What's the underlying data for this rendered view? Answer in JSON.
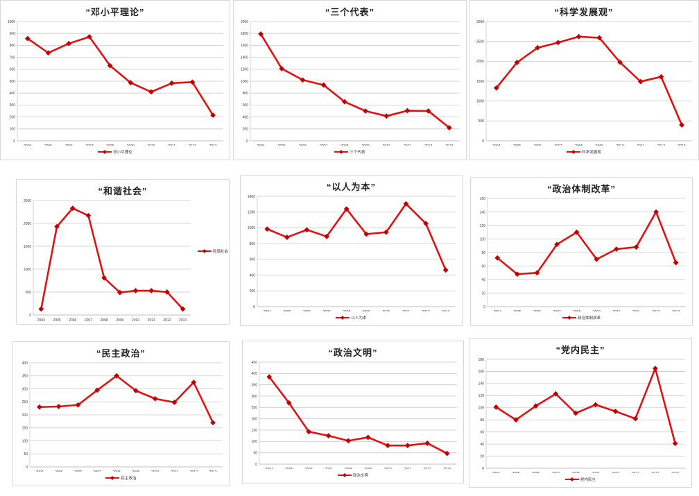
{
  "colors": {
    "line": "#e01111",
    "marker": "#c00000",
    "grid": "#c9c9c9",
    "axis_line": "#aeaeae",
    "tick_text": "#3c3c3c",
    "title_text": "#1f1f1f",
    "panel_border": "#d7d7d7"
  },
  "chart_data": [
    {
      "type": "line",
      "title": "“邓小平理论”",
      "legend": "邓小平理论",
      "legend_position": "bottom",
      "categories": [
        "2004",
        "2005",
        "2006",
        "2007",
        "2008",
        "2009",
        "2010",
        "2011",
        "2012",
        "2013"
      ],
      "values": [
        857,
        737,
        815,
        872,
        630,
        487,
        410,
        483,
        492,
        215
      ],
      "ylim": [
        0,
        1000
      ],
      "ytick_step": 100,
      "grid": true
    },
    {
      "type": "line",
      "title": "“三个代表”",
      "legend": "三个代表",
      "legend_position": "bottom",
      "categories": [
        "2004",
        "2005",
        "2006",
        "2007",
        "2008",
        "2009",
        "2010",
        "2011",
        "2012",
        "2013"
      ],
      "values": [
        1790,
        1210,
        1020,
        935,
        655,
        500,
        415,
        505,
        500,
        220
      ],
      "ylim": [
        0,
        2000
      ],
      "ytick_step": 200,
      "grid": true
    },
    {
      "type": "line",
      "title": "“科学发展观”",
      "legend": "科学发展观",
      "legend_position": "bottom",
      "categories": [
        "2004",
        "2005",
        "2006",
        "2007",
        "2008",
        "2009",
        "2010",
        "2011",
        "2012",
        "2013"
      ],
      "values": [
        1330,
        1970,
        2340,
        2470,
        2620,
        2590,
        1975,
        1490,
        1610,
        400
      ],
      "ylim": [
        0,
        3000
      ],
      "ytick_step": 500,
      "grid": true
    },
    {
      "type": "line",
      "title": "“和谐社会”",
      "legend": "和谐社会",
      "legend_position": "right",
      "categories": [
        "2004",
        "2005",
        "2006",
        "2007",
        "2008",
        "2009",
        "2010",
        "2011",
        "2012",
        "2013"
      ],
      "values": [
        130,
        1930,
        2330,
        2170,
        810,
        490,
        530,
        530,
        500,
        130
      ],
      "ylim": [
        0,
        2500
      ],
      "ytick_step": 500,
      "grid": true
    },
    {
      "type": "line",
      "title": "“以人为本”",
      "legend": "以人为本",
      "legend_position": "bottom",
      "categories": [
        "2004",
        "2005",
        "2006",
        "2007",
        "2008",
        "2009",
        "2010",
        "2011",
        "2012",
        "2013"
      ],
      "values": [
        985,
        880,
        975,
        890,
        1240,
        920,
        945,
        1305,
        1055,
        465
      ],
      "ylim": [
        0,
        1400
      ],
      "ytick_step": 200,
      "grid": true
    },
    {
      "type": "line",
      "title": "“政治体制改革”",
      "legend": "政治体制改革",
      "legend_position": "bottom",
      "categories": [
        "2004",
        "2005",
        "2006",
        "2007",
        "2008",
        "2009",
        "2010",
        "2011",
        "2012",
        "2013"
      ],
      "values": [
        72,
        48,
        50,
        92,
        110,
        70,
        85,
        88,
        140,
        65
      ],
      "ylim": [
        0,
        160
      ],
      "ytick_step": 20,
      "grid": true
    },
    {
      "type": "line",
      "title": "“民主政治”",
      "legend": "民主政治",
      "legend_position": "bottom",
      "categories": [
        "2004",
        "2005",
        "2006",
        "2007",
        "2008",
        "2009",
        "2010",
        "2011",
        "2012",
        "2013"
      ],
      "values": [
        230,
        232,
        238,
        295,
        350,
        293,
        262,
        248,
        325,
        170
      ],
      "ylim": [
        0,
        400
      ],
      "ytick_step": 50,
      "grid": true
    },
    {
      "type": "line",
      "title": "“政治文明”",
      "legend": "政治文明",
      "legend_position": "bottom",
      "categories": [
        "2004",
        "2005",
        "2006",
        "2007",
        "2008",
        "2009",
        "2010",
        "2011",
        "2012",
        "2013"
      ],
      "values": [
        385,
        270,
        143,
        125,
        103,
        118,
        82,
        82,
        92,
        47
      ],
      "ylim": [
        0,
        450
      ],
      "ytick_step": 50,
      "grid": true
    },
    {
      "type": "line",
      "title": "“党内民主”",
      "legend": "党内民主",
      "legend_position": "bottom",
      "categories": [
        "2004",
        "2005",
        "2006",
        "2007",
        "2008",
        "2009",
        "2010",
        "2011",
        "2012",
        "2013"
      ],
      "values": [
        101,
        80,
        103,
        123,
        91,
        105,
        94,
        82,
        165,
        41
      ],
      "ylim": [
        0,
        180
      ],
      "ytick_step": 20,
      "grid": true
    }
  ]
}
